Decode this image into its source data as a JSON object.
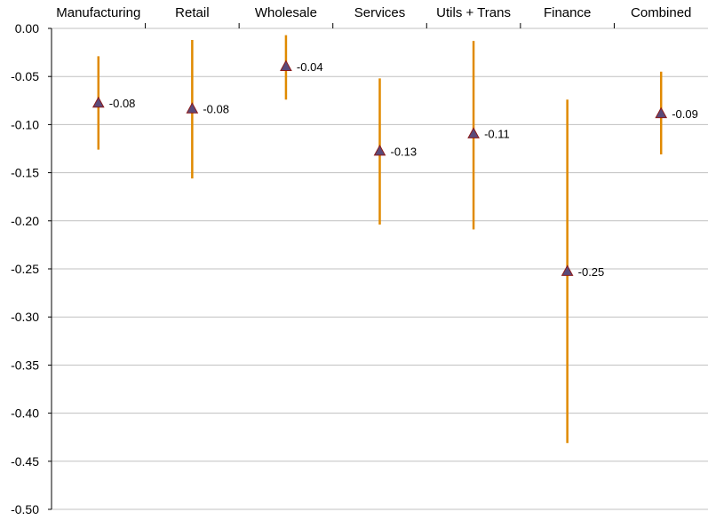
{
  "chart_data": {
    "type": "scatter",
    "categories": [
      "Manufacturing",
      "Retail",
      "Wholesale",
      "Services",
      "Utils + Trans",
      "Finance",
      "Combined"
    ],
    "series": [
      {
        "values": [
          -0.078,
          -0.084,
          -0.04,
          -0.128,
          -0.11,
          -0.253,
          -0.089
        ],
        "value_labels": [
          "-0.08",
          "-0.08",
          "-0.04",
          "-0.13",
          "-0.11",
          "-0.25",
          "-0.09"
        ],
        "lower": [
          -0.126,
          -0.156,
          -0.074,
          -0.204,
          -0.209,
          -0.431,
          -0.131
        ],
        "upper": [
          -0.029,
          -0.012,
          -0.007,
          -0.052,
          -0.013,
          -0.074,
          -0.045
        ],
        "marker": "triangle",
        "marker_color": "#5a4a7a",
        "marker_edge_color": "#8b1a1a"
      }
    ],
    "error_bar_color": "#e08a00",
    "ylim": [
      -0.5,
      0.0
    ],
    "y_ticks": [
      0.0,
      -0.05,
      -0.1,
      -0.15,
      -0.2,
      -0.25,
      -0.3,
      -0.35,
      -0.4,
      -0.45,
      -0.5
    ],
    "y_tick_labels": [
      "0.00",
      "-0.05",
      "-0.10",
      "-0.15",
      "-0.20",
      "-0.25",
      "-0.30",
      "-0.35",
      "-0.40",
      "-0.45",
      "-0.50"
    ],
    "x_axis_position": "top",
    "grid": true,
    "grid_color": "#c0c0c0",
    "title": "",
    "xlabel": "",
    "ylabel": ""
  }
}
